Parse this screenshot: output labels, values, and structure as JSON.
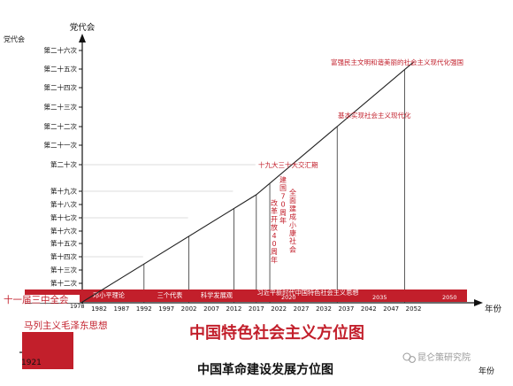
{
  "chart_data": {
    "type": "line",
    "title": "中国特色社会主义方位图",
    "bottom_title": "中国革命建设发展方位图",
    "ylabel": "党代会",
    "ylabel_small": "党代会",
    "xlabel": "年份",
    "xlabel_bottom": "年份",
    "y_categories": [
      "第十二次",
      "第十三次",
      "第十四次",
      "第十五次",
      "第十六次",
      "第十七次",
      "第十八次",
      "第十九次",
      "第二十次",
      "第二十一次",
      "第二十二次",
      "第二十三次",
      "第二十四次",
      "第二十五次",
      "第二十六次"
    ],
    "y_base_label": "十一届三中全会",
    "x_ticks": [
      "1982",
      "1987",
      "1992",
      "1997",
      "2002",
      "2007",
      "2012",
      "2017",
      "2022",
      "2027",
      "2032",
      "2037",
      "2042",
      "2047",
      "2052"
    ],
    "x_origin_label": "1978",
    "start_year_label": "1921",
    "guide_years": [
      1992,
      2002,
      2012,
      2017,
      2020,
      2035,
      2050
    ],
    "bar_labels": [
      "邓小平理论",
      "三个代表",
      "科学发展观",
      "习近平新时代中国特色社会主义思想"
    ],
    "left_bar_label": "马列主义毛泽东思想",
    "bar_year_labels": [
      "2020",
      "2035",
      "2050"
    ],
    "annotations": [
      "富强民主文明和谐美丽的社会主义现代化强国",
      "基本实现社会主义现代化",
      "十九大三十大交汇期",
      "改革开放40周年",
      "建国70周年",
      "全面建成小康社会"
    ],
    "series": [
      {
        "x": [
          1978,
          2017,
          2052
        ],
        "y": [
          0,
          11,
          24.5
        ]
      }
    ]
  },
  "watermark": "昆仑策研究院",
  "colors": {
    "red": "#c21f2b",
    "axis": "#111111"
  }
}
